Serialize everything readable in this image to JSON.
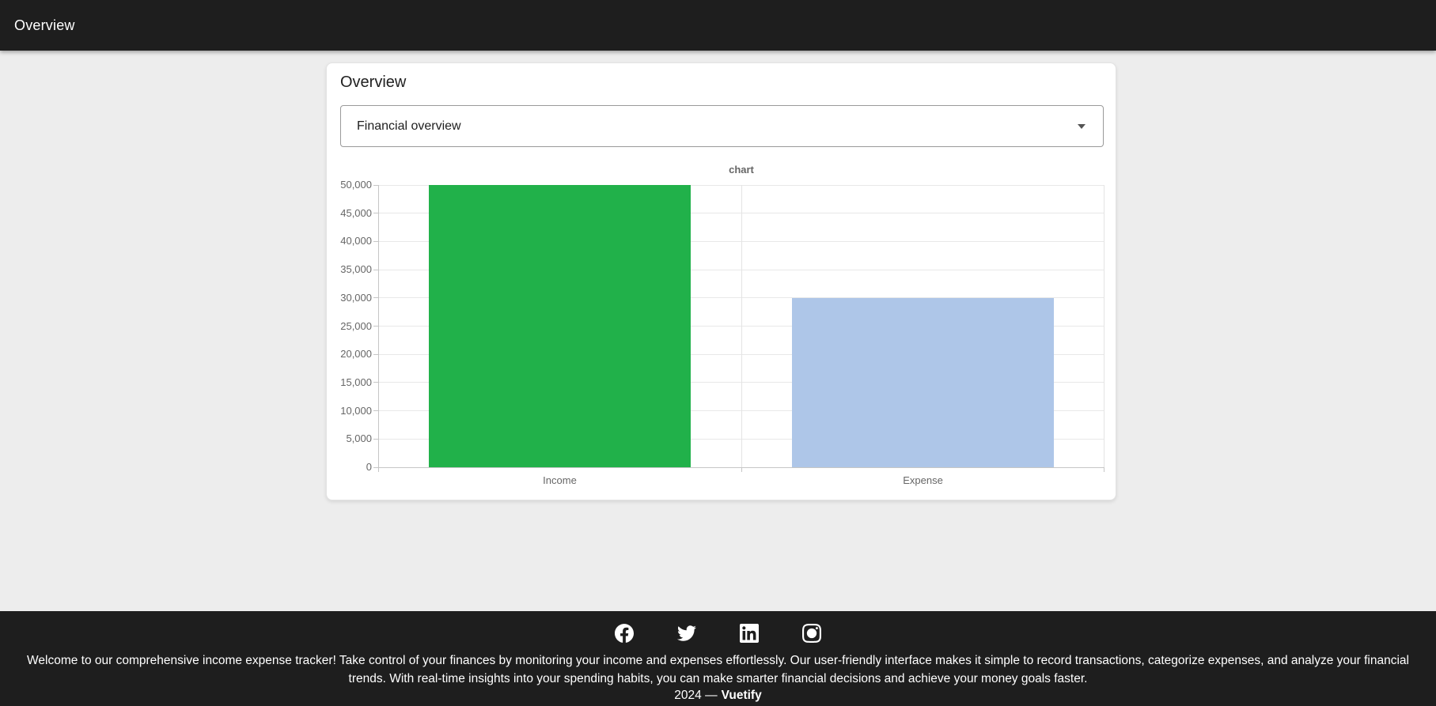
{
  "header": {
    "title": "Overview"
  },
  "card": {
    "title": "Overview",
    "select": {
      "value": "Financial overview"
    }
  },
  "chart_data": {
    "type": "bar",
    "title": "chart",
    "categories": [
      "Income",
      "Expense"
    ],
    "values": [
      50000,
      30000
    ],
    "bar_colors": [
      "#21b14a",
      "#aec6e8"
    ],
    "xlabel": "",
    "ylabel": "",
    "ylim": [
      0,
      50000
    ],
    "ytick_step": 5000,
    "ytick_labels": [
      "0",
      "5,000",
      "10,000",
      "15,000",
      "20,000",
      "25,000",
      "30,000",
      "35,000",
      "40,000",
      "45,000",
      "50,000"
    ],
    "grid": true,
    "legend": false
  },
  "footer": {
    "social_icons": [
      "facebook",
      "twitter",
      "linkedin",
      "instagram"
    ],
    "description": "Welcome to our comprehensive income expense tracker! Take control of your finances by monitoring your income and expenses effortlessly. Our user-friendly interface makes it simple to record transactions, categorize expenses, and analyze your financial trends. With real-time insights into your spending habits, you can make smarter financial decisions and achieve your money goals faster.",
    "copyright_prefix": "2024 —",
    "brand": "Vuetify"
  },
  "colors": {
    "app_bar_bg": "#1e1e1e",
    "page_bg": "#ededed",
    "footer_bg": "#1e1e1e",
    "income_bar": "#21b14a",
    "expense_bar": "#aec6e8"
  }
}
